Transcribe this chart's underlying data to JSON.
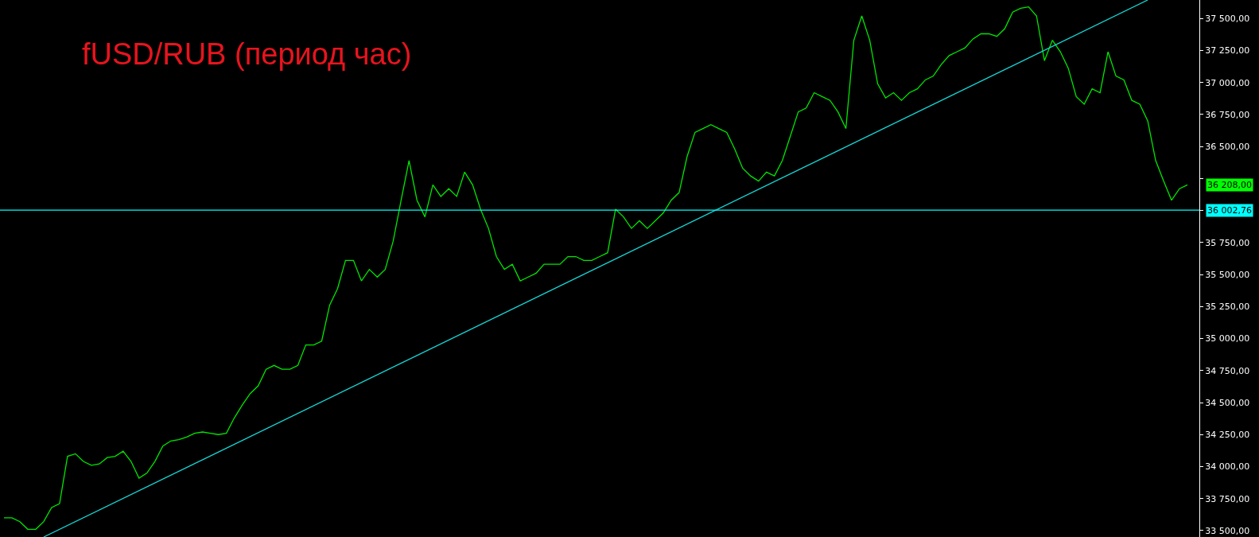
{
  "chart_data": {
    "type": "line",
    "title": "fUSD/RUB (период час)",
    "categories": [
      null,
      null,
      null,
      null,
      null,
      null,
      null,
      null,
      null,
      null,
      null,
      null,
      null,
      null,
      null,
      null,
      null,
      null,
      null,
      null,
      null,
      null,
      null,
      null,
      null,
      null,
      null,
      null,
      null,
      null,
      null,
      null,
      null,
      null,
      null,
      null,
      null,
      null,
      null,
      null,
      null,
      null,
      null,
      null,
      null,
      null,
      null,
      null,
      null,
      null,
      null,
      null,
      null,
      null,
      null,
      null,
      null,
      null,
      null,
      null,
      null,
      null,
      null,
      null,
      null,
      null,
      null,
      null,
      null,
      null,
      null,
      null,
      null,
      null,
      null,
      null,
      null,
      null,
      null,
      null,
      null,
      null,
      null,
      null,
      null,
      null,
      null,
      null,
      null,
      null,
      null,
      null,
      null,
      null,
      null,
      null,
      null,
      null,
      null,
      null,
      null,
      null,
      null,
      null,
      null,
      null,
      null,
      null,
      null,
      null,
      null,
      null,
      null,
      null,
      null,
      null,
      null,
      null,
      null,
      null,
      null,
      null,
      null,
      null,
      null,
      null,
      null,
      null,
      null,
      null,
      null,
      null,
      null,
      null,
      null,
      null,
      null,
      null,
      null,
      null,
      null,
      null,
      null,
      null,
      null,
      null,
      null,
      null,
      null,
      null
    ],
    "series": [
      {
        "color": "#00e600",
        "values": [
          33600,
          33600,
          33570,
          33510,
          33510,
          33570,
          33680,
          33710,
          34080,
          34100,
          34040,
          34010,
          34020,
          34070,
          34080,
          34120,
          34040,
          33910,
          33950,
          34040,
          34160,
          34200,
          34210,
          34230,
          34260,
          34270,
          34260,
          34250,
          34260,
          34380,
          34480,
          34570,
          34630,
          34760,
          34790,
          34760,
          34760,
          34790,
          34950,
          34950,
          34980,
          35260,
          35390,
          35610,
          35610,
          35450,
          35540,
          35480,
          35540,
          35760,
          36080,
          36390,
          36080,
          35950,
          36200,
          36110,
          36170,
          36110,
          36300,
          36200,
          36010,
          35860,
          35640,
          35540,
          35580,
          35450,
          35480,
          35510,
          35580,
          35580,
          35580,
          35640,
          35640,
          35610,
          35610,
          35640,
          35670,
          36010,
          35950,
          35860,
          35920,
          35860,
          35920,
          35980,
          36080,
          36140,
          36420,
          36610,
          36640,
          36670,
          36640,
          36610,
          36480,
          36330,
          36270,
          36230,
          36300,
          36270,
          36390,
          36580,
          36770,
          36800,
          36920,
          36890,
          36860,
          36770,
          36640,
          37330,
          37520,
          37330,
          36990,
          36880,
          36920,
          36860,
          36920,
          36950,
          37020,
          37050,
          37140,
          37210,
          37240,
          37270,
          37340,
          37380,
          37380,
          37360,
          37420,
          37550,
          37580,
          37590,
          37520,
          37170,
          37330,
          37240,
          37110,
          36890,
          36830,
          36950,
          36920,
          37240,
          37050,
          37020,
          36860,
          36830,
          36700,
          36390,
          36230,
          36080,
          36170,
          36200
        ]
      },
      {
        "color": "#17d6d6",
        "values": [
          null,
          null,
          null,
          null,
          null,
          33450,
          null,
          null,
          null,
          null,
          null,
          null,
          null,
          null,
          null,
          null,
          null,
          null,
          null,
          null,
          null,
          null,
          null,
          null,
          null,
          null,
          null,
          null,
          null,
          null,
          null,
          null,
          null,
          null,
          null,
          null,
          null,
          null,
          null,
          null,
          null,
          null,
          null,
          null,
          null,
          null,
          null,
          null,
          null,
          null,
          null,
          null,
          null,
          null,
          null,
          null,
          null,
          null,
          null,
          null,
          null,
          null,
          null,
          null,
          null,
          null,
          null,
          null,
          null,
          null,
          null,
          null,
          null,
          null,
          null,
          null,
          null,
          null,
          null,
          null,
          null,
          null,
          null,
          null,
          null,
          null,
          null,
          null,
          null,
          null,
          null,
          null,
          null,
          null,
          null,
          null,
          null,
          null,
          null,
          null,
          null,
          null,
          null,
          null,
          null,
          null,
          null,
          null,
          null,
          null,
          null,
          null,
          null,
          null,
          null,
          null,
          null,
          null,
          null,
          null,
          null,
          null,
          null,
          null,
          null,
          null,
          null,
          null,
          null,
          null,
          null,
          null,
          null,
          null,
          null,
          null,
          null,
          null,
          null,
          null,
          null,
          null,
          null,
          null,
          37644,
          null,
          null,
          null,
          null,
          null
        ]
      }
    ],
    "ylim": [
      33450,
      37644
    ],
    "yticks": [
      {
        "value": 33500,
        "label": "33 500,00"
      },
      {
        "value": 33750,
        "label": "33 750,00"
      },
      {
        "value": 34000,
        "label": "34 000,00"
      },
      {
        "value": 34250,
        "label": "34 250,00"
      },
      {
        "value": 34500,
        "label": "34 500,00"
      },
      {
        "value": 34750,
        "label": "34 750,00"
      },
      {
        "value": 35000,
        "label": "35 000,00"
      },
      {
        "value": 35250,
        "label": "35 250,00"
      },
      {
        "value": 35500,
        "label": "35 500,00"
      },
      {
        "value": 35750,
        "label": "35 750,00"
      },
      {
        "value": 36000,
        "label": null
      },
      {
        "value": 36250,
        "label": null
      },
      {
        "value": 36500,
        "label": "36 500,00"
      },
      {
        "value": 36750,
        "label": "36 750,00"
      },
      {
        "value": 37000,
        "label": "37 000,00"
      },
      {
        "value": 37250,
        "label": "37 250,00"
      },
      {
        "value": 37500,
        "label": "37 500,00"
      }
    ],
    "tick_labels": "y",
    "ref_lines": [
      {
        "axis": "y",
        "value": 36002.76,
        "label": "36 002,76",
        "color": "#00ffff"
      }
    ],
    "annotations": [
      "36 208,00"
    ],
    "grid": false
  }
}
